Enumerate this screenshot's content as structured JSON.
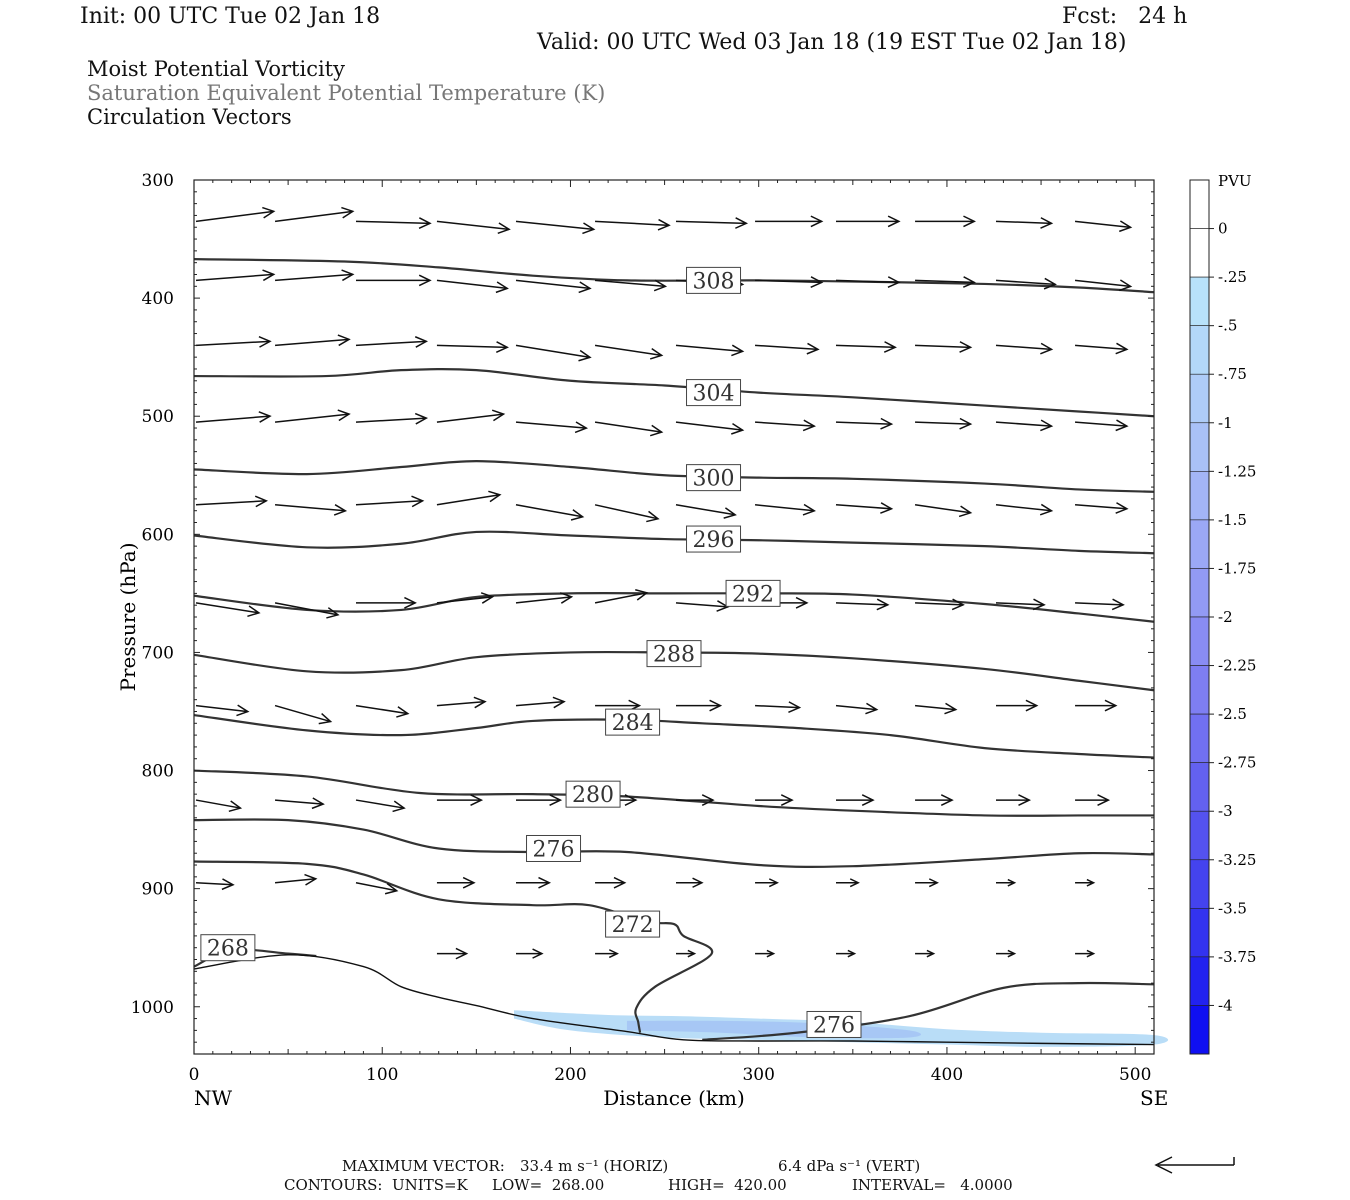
{
  "header": {
    "init": "Init: 00 UTC Tue 02 Jan 18",
    "fcst": "Fcst:   24 h",
    "valid": "Valid: 00 UTC Wed 03 Jan 18 (19 EST Tue 02 Jan 18)"
  },
  "legend_lines": {
    "line1": "Moist Potential Vorticity",
    "line2": "Saturation Equivalent Potential Temperature (K)",
    "line3": "Circulation Vectors"
  },
  "footer": {
    "max_vector_label": "MAXIMUM VECTOR:",
    "max_vector_horiz": "33.4 m s⁻¹ (HORIZ)",
    "max_vector_vert": "6.4 dPa s⁻¹ (VERT)",
    "contours_label": "CONTOURS:  UNITS=K",
    "low": "LOW=  268.00",
    "high": "HIGH=  420.00",
    "interval": "INTERVAL=   4.0000"
  },
  "colors": {
    "contour": "#333333",
    "pv_light": "#b9ddf7",
    "pv_mid": "#a7c7f5"
  },
  "chart_data": {
    "type": "contour",
    "xlabel": "Distance (km)",
    "ylabel": "Pressure (hPa)",
    "xlim": [
      0,
      510
    ],
    "ylim": [
      300,
      1040
    ],
    "y_reversed": true,
    "x_ticks": [
      0,
      100,
      200,
      300,
      400,
      500
    ],
    "y_ticks": [
      300,
      400,
      500,
      600,
      700,
      800,
      900,
      1000
    ],
    "x_end_labels": {
      "left": "NW",
      "right": "SE"
    },
    "colorbar": {
      "title": "PVU",
      "ticks": [
        "0",
        "-.25",
        "-.5",
        "-.75",
        "-1",
        "-1.25",
        "-1.5",
        "-1.75",
        "-2",
        "-2.25",
        "-2.5",
        "-2.75",
        "-3",
        "-3.25",
        "-3.5",
        "-3.75",
        "-4"
      ],
      "colors": [
        "#ffffff",
        "#ffffff",
        "#b8e2fa",
        "#b3d8f9",
        "#aeccf8",
        "#a9c1f7",
        "#a3b5f6",
        "#9ba8f5",
        "#929af4",
        "#898cf3",
        "#7e7ef2",
        "#7170f1",
        "#6361f0",
        "#5452ef",
        "#4443ee",
        "#3333ef",
        "#2222f0",
        "#0f0ff2"
      ]
    },
    "contours": [
      {
        "value": "308",
        "label_at": [
          276,
          385
        ],
        "points": [
          [
            0,
            367
          ],
          [
            80,
            369
          ],
          [
            130,
            374
          ],
          [
            180,
            381
          ],
          [
            230,
            385
          ],
          [
            300,
            385
          ],
          [
            350,
            386
          ],
          [
            420,
            388
          ],
          [
            470,
            391
          ],
          [
            510,
            395
          ]
        ]
      },
      {
        "value": "304",
        "label_at": [
          276,
          480
        ],
        "points": [
          [
            0,
            466
          ],
          [
            70,
            466
          ],
          [
            110,
            461
          ],
          [
            150,
            461
          ],
          [
            200,
            470
          ],
          [
            250,
            474
          ],
          [
            300,
            480
          ],
          [
            350,
            484
          ],
          [
            420,
            491
          ],
          [
            470,
            496
          ],
          [
            510,
            500
          ]
        ]
      },
      {
        "value": "300",
        "label_at": [
          276,
          552
        ],
        "points": [
          [
            0,
            545
          ],
          [
            60,
            549
          ],
          [
            110,
            543
          ],
          [
            150,
            538
          ],
          [
            200,
            543
          ],
          [
            250,
            550
          ],
          [
            300,
            552
          ],
          [
            350,
            553
          ],
          [
            420,
            557
          ],
          [
            470,
            562
          ],
          [
            510,
            564
          ]
        ]
      },
      {
        "value": "296",
        "label_at": [
          276,
          604
        ],
        "points": [
          [
            0,
            601
          ],
          [
            60,
            611
          ],
          [
            110,
            608
          ],
          [
            150,
            598
          ],
          [
            200,
            601
          ],
          [
            250,
            604
          ],
          [
            300,
            605
          ],
          [
            350,
            607
          ],
          [
            420,
            610
          ],
          [
            470,
            614
          ],
          [
            510,
            616
          ]
        ]
      },
      {
        "value": "292",
        "label_at": [
          297,
          650
        ],
        "points": [
          [
            0,
            652
          ],
          [
            60,
            664
          ],
          [
            110,
            664
          ],
          [
            150,
            653
          ],
          [
            200,
            650
          ],
          [
            250,
            650
          ],
          [
            300,
            650
          ],
          [
            350,
            651
          ],
          [
            420,
            659
          ],
          [
            470,
            667
          ],
          [
            510,
            674
          ]
        ]
      },
      {
        "value": "288",
        "label_at": [
          255,
          701
        ],
        "points": [
          [
            0,
            702
          ],
          [
            60,
            716
          ],
          [
            110,
            715
          ],
          [
            150,
            704
          ],
          [
            200,
            700
          ],
          [
            250,
            700
          ],
          [
            300,
            701
          ],
          [
            350,
            705
          ],
          [
            420,
            714
          ],
          [
            470,
            724
          ],
          [
            510,
            732
          ]
        ]
      },
      {
        "value": "284",
        "label_at": [
          233,
          759
        ],
        "points": [
          [
            0,
            753
          ],
          [
            60,
            766
          ],
          [
            110,
            770
          ],
          [
            150,
            764
          ],
          [
            180,
            758
          ],
          [
            230,
            757
          ],
          [
            270,
            760
          ],
          [
            320,
            764
          ],
          [
            370,
            770
          ],
          [
            420,
            781
          ],
          [
            470,
            786
          ],
          [
            510,
            789
          ]
        ]
      },
      {
        "value": "280",
        "label_at": [
          212,
          820
        ],
        "points": [
          [
            0,
            800
          ],
          [
            60,
            805
          ],
          [
            120,
            819
          ],
          [
            180,
            820
          ],
          [
            230,
            822
          ],
          [
            300,
            830
          ],
          [
            350,
            834
          ],
          [
            420,
            838
          ],
          [
            470,
            838
          ],
          [
            510,
            838
          ]
        ]
      },
      {
        "value": "276",
        "label_at": [
          191,
          866
        ],
        "points": [
          [
            0,
            842
          ],
          [
            50,
            842
          ],
          [
            90,
            850
          ],
          [
            130,
            866
          ],
          [
            180,
            869
          ],
          [
            230,
            869
          ],
          [
            300,
            880
          ],
          [
            350,
            881
          ],
          [
            420,
            875
          ],
          [
            470,
            870
          ],
          [
            510,
            871
          ]
        ]
      },
      {
        "value": "272",
        "label_at": [
          233,
          930
        ],
        "points": [
          [
            0,
            877
          ],
          [
            60,
            879
          ],
          [
            90,
            888
          ],
          [
            130,
            909
          ],
          [
            180,
            914
          ],
          [
            210,
            914
          ],
          [
            240,
            928
          ],
          [
            255,
            930
          ],
          [
            260,
            940
          ],
          [
            275,
            955
          ],
          [
            245,
            983
          ],
          [
            235,
            1001
          ],
          [
            236,
            1013
          ],
          [
            237,
            1022
          ]
        ]
      },
      {
        "value": "268",
        "label_at": [
          18,
          950
        ],
        "points": [
          [
            0,
            966
          ],
          [
            20,
            952
          ],
          [
            50,
            955
          ],
          [
            65,
            957
          ]
        ]
      },
      {
        "value": "276",
        "label_at": [
          340,
          1015
        ],
        "points": [
          [
            270,
            1028
          ],
          [
            320,
            1022
          ],
          [
            380,
            1008
          ],
          [
            430,
            984
          ],
          [
            470,
            980
          ],
          [
            510,
            981
          ]
        ]
      }
    ],
    "pv_shading": {
      "description_value": "-.25 to -.75 PVU near surface",
      "region_points": [
        [
          170,
          1003
        ],
        [
          220,
          1007
        ],
        [
          260,
          1008
        ],
        [
          300,
          1010
        ],
        [
          350,
          1013
        ],
        [
          400,
          1019
        ],
        [
          450,
          1022
        ],
        [
          510,
          1024
        ],
        [
          510,
          1032
        ],
        [
          450,
          1034
        ],
        [
          400,
          1032
        ],
        [
          350,
          1030
        ],
        [
          300,
          1028
        ],
        [
          250,
          1026
        ],
        [
          200,
          1020
        ],
        [
          170,
          1010
        ]
      ],
      "inner_points": [
        [
          230,
          1012
        ],
        [
          280,
          1012
        ],
        [
          330,
          1014
        ],
        [
          380,
          1020
        ],
        [
          380,
          1026
        ],
        [
          330,
          1026
        ],
        [
          280,
          1022
        ],
        [
          230,
          1020
        ]
      ]
    },
    "terrain": [
      [
        0,
        968
      ],
      [
        50,
        956
      ],
      [
        90,
        966
      ],
      [
        110,
        983
      ],
      [
        130,
        992
      ],
      [
        150,
        999
      ],
      [
        180,
        1010
      ],
      [
        230,
        1021
      ],
      [
        260,
        1028
      ],
      [
        300,
        1029
      ],
      [
        350,
        1029
      ],
      [
        400,
        1030
      ],
      [
        450,
        1031
      ],
      [
        510,
        1032
      ]
    ],
    "vectors": {
      "scale_x_km_per_unit": 1.0,
      "columns_x": [
        0,
        42,
        85,
        128,
        170,
        212,
        255,
        297,
        340,
        382,
        425,
        467
      ],
      "rows": [
        {
          "p": 335,
          "u": [
            42,
            42,
            40,
            39,
            42,
            40,
            38,
            36,
            34,
            32,
            30,
            30
          ],
          "w": [
            -5,
            -5,
            1,
            4,
            4,
            2,
            1,
            0,
            0,
            0,
            1,
            3
          ]
        },
        {
          "p": 385,
          "u": [
            42,
            42,
            40,
            38,
            40,
            38,
            36,
            36,
            34,
            32,
            32,
            30
          ],
          "w": [
            -3,
            -3,
            0,
            4,
            4,
            3,
            2,
            1,
            1,
            1,
            2,
            3
          ]
        },
        {
          "p": 440,
          "u": [
            40,
            40,
            38,
            38,
            40,
            36,
            36,
            34,
            32,
            30,
            30,
            28
          ],
          "w": [
            -2,
            -3,
            -2,
            1,
            6,
            5,
            3,
            2,
            1,
            1,
            2,
            2
          ]
        },
        {
          "p": 505,
          "u": [
            40,
            40,
            38,
            36,
            38,
            36,
            36,
            32,
            30,
            30,
            30,
            28
          ],
          "w": [
            -3,
            -4,
            -2,
            -4,
            3,
            5,
            4,
            2,
            1,
            1,
            2,
            2
          ]
        },
        {
          "p": 575,
          "u": [
            38,
            38,
            36,
            34,
            36,
            34,
            32,
            32,
            30,
            30,
            30,
            28
          ],
          "w": [
            -2,
            3,
            -2,
            -5,
            6,
            7,
            5,
            3,
            2,
            4,
            3,
            2
          ]
        },
        {
          "p": 658,
          "u": [
            34,
            34,
            32,
            30,
            30,
            28,
            28,
            28,
            28,
            26,
            26,
            26
          ],
          "w": [
            5,
            6,
            0,
            -3,
            -3,
            -5,
            2,
            0,
            1,
            1,
            1,
            1
          ]
        },
        {
          "p": 745,
          "u": [
            28,
            30,
            28,
            26,
            26,
            24,
            24,
            24,
            22,
            22,
            22,
            22
          ],
          "w": [
            3,
            8,
            4,
            -2,
            -2,
            0,
            0,
            1,
            2,
            2,
            0,
            0
          ]
        },
        {
          "p": 825,
          "u": [
            24,
            26,
            26,
            24,
            24,
            22,
            20,
            20,
            20,
            20,
            18,
            18
          ],
          "w": [
            4,
            2,
            4,
            0,
            0,
            0,
            0,
            0,
            0,
            0,
            0,
            0
          ]
        },
        {
          "p": 895,
          "u": [
            20,
            22,
            22,
            20,
            18,
            16,
            14,
            12,
            12,
            12,
            10,
            10
          ],
          "w": [
            1,
            -2,
            4,
            0,
            0,
            0,
            0,
            0,
            0,
            0,
            0,
            0
          ]
        },
        {
          "p": 955,
          "u": [
            0,
            0,
            0,
            16,
            14,
            12,
            10,
            10,
            10,
            10,
            10,
            10
          ],
          "w": [
            0,
            0,
            0,
            0,
            0,
            0,
            0,
            0,
            0,
            0,
            0,
            0
          ]
        }
      ]
    }
  }
}
